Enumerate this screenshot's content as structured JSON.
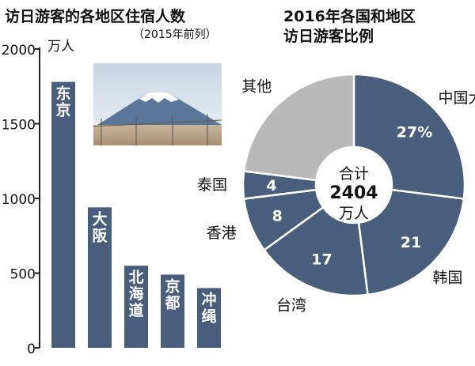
{
  "chart_data": [
    {
      "type": "bar",
      "title": "访日游客的各地区住宿人数",
      "subtitle": "（2015年前列）",
      "ylabel": "万人",
      "ylim": [
        0,
        2000
      ],
      "yticks": [
        "0",
        "500",
        "1000",
        "1500",
        "2000"
      ],
      "categories": [
        "东京",
        "大阪",
        "北海道",
        "京都",
        "冲绳"
      ],
      "values": [
        1780,
        940,
        550,
        490,
        400
      ],
      "bar_color": "#495e7c"
    },
    {
      "type": "pie",
      "title_lines": [
        "2016年各国和地区",
        "访日游客比例"
      ],
      "center_lines": [
        "合计",
        "2404",
        "万人"
      ],
      "slices": [
        {
          "label": "中国大陆",
          "value": 27,
          "display": "27%",
          "color": "#495e7c"
        },
        {
          "label": "韩国",
          "value": 21,
          "display": "21",
          "color": "#495e7c"
        },
        {
          "label": "台湾",
          "value": 17,
          "display": "17",
          "color": "#495e7c"
        },
        {
          "label": "香港",
          "value": 8,
          "display": "8",
          "color": "#495e7c"
        },
        {
          "label": "泰国",
          "value": 4,
          "display": "4",
          "color": "#495e7c"
        },
        {
          "label": "其他",
          "value": 23,
          "display": "",
          "color": "#b9b9b9"
        }
      ]
    }
  ]
}
